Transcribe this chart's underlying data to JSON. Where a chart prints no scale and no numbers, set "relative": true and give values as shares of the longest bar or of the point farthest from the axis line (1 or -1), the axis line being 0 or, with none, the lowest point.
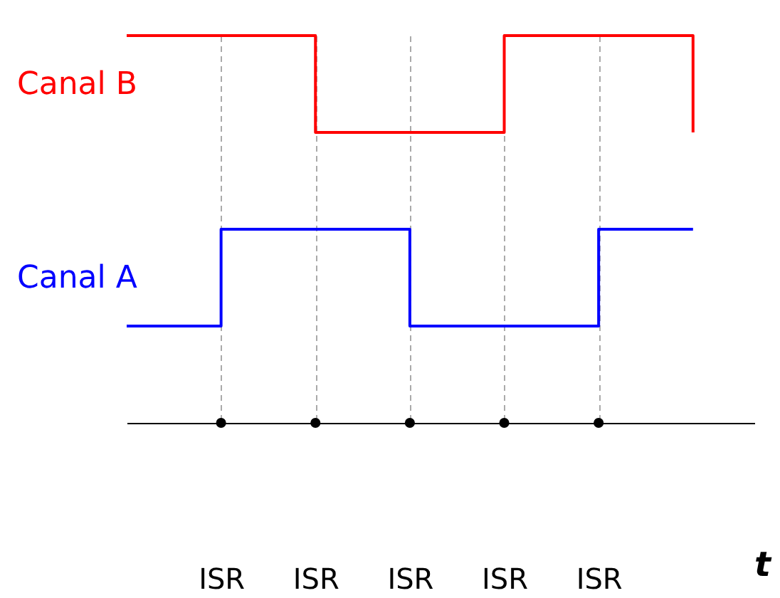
{
  "chart_data": {
    "type": "step",
    "relative": true,
    "xlabel": "t",
    "categories": [
      null,
      "ISR",
      "ISR",
      "ISR",
      "ISR",
      "ISR",
      null
    ],
    "grid": "x",
    "marker": "none",
    "line_style": "solid",
    "series": [
      {
        "name": "Canal B",
        "color": "#ff0000",
        "values": [
          1,
          1,
          0.75,
          0.75,
          1,
          1,
          0.75
        ]
      },
      {
        "name": "Canal A",
        "color": "#0000ff",
        "values": [
          0.25,
          0.5,
          0.5,
          0.25,
          0.25,
          0.5,
          0.5
        ]
      },
      {
        "type": "scatter",
        "color": "#000000",
        "marker": "circle",
        "values": [
          null,
          0,
          0,
          0,
          0,
          0,
          null
        ]
      }
    ]
  }
}
